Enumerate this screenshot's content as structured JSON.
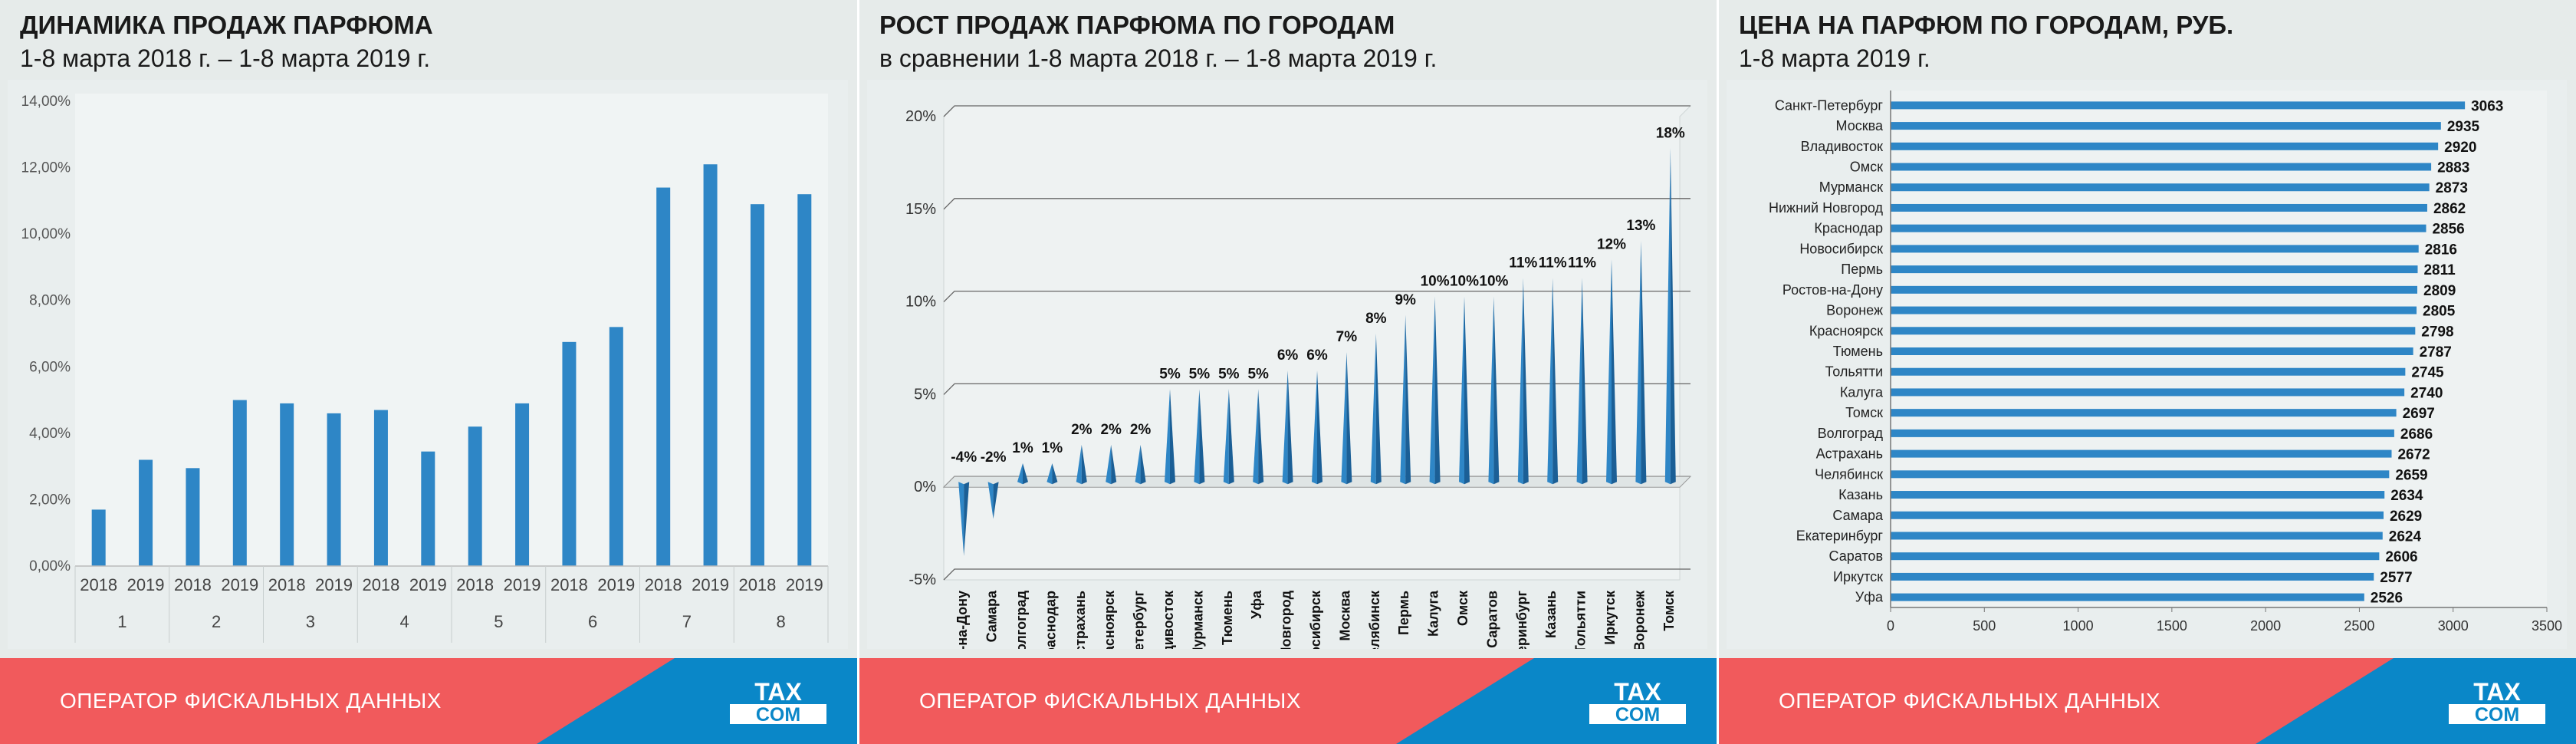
{
  "panels": [
    {
      "title": "ДИНАМИКА ПРОДАЖ ПАРФЮМА",
      "subtitle": "1-8 марта 2018 г. – 1-8 марта 2019 г."
    },
    {
      "title": "РОСТ ПРОДАЖ ПАРФЮМА ПО ГОРОДАМ",
      "subtitle": "в сравнении 1-8 марта 2018 г. – 1-8 марта 2019 г."
    },
    {
      "title": "ЦЕНА НА ПАРФЮМ ПО ГОРОДАМ, РУБ.",
      "subtitle": "1-8 марта 2019 г."
    }
  ],
  "footer": {
    "text": "ОПЕРАТОР ФИСКАЛЬНЫХ ДАННЫХ",
    "logo_line1": "TAX",
    "logo_line2": "COM"
  },
  "colors": {
    "bar": "#2e86c6",
    "bar_dark": "#1b5f96",
    "footer_red": "#f15a5c",
    "footer_blue": "#0a87c8",
    "background": "#e6ebea"
  },
  "chart_data": [
    {
      "type": "bar",
      "title": "ДИНАМИКА ПРОДАЖ ПАРФЮМА",
      "subtitle": "1-8 марта 2018 г. – 1-8 марта 2019 г.",
      "groups": [
        "1",
        "2",
        "3",
        "4",
        "5",
        "6",
        "7",
        "8"
      ],
      "categories": [
        "2018",
        "2019",
        "2018",
        "2019",
        "2018",
        "2019",
        "2018",
        "2019",
        "2018",
        "2019",
        "2018",
        "2019",
        "2018",
        "2019",
        "2018",
        "2019"
      ],
      "values": [
        1.7,
        3.2,
        2.95,
        5.0,
        4.9,
        4.6,
        4.7,
        3.45,
        4.2,
        4.9,
        6.75,
        7.2,
        11.4,
        12.1,
        10.9,
        11.2
      ],
      "ylim": [
        0,
        14
      ],
      "yticks": [
        "0,00%",
        "2,00%",
        "4,00%",
        "6,00%",
        "8,00%",
        "10,00%",
        "12,00%",
        "14,00%"
      ],
      "grid": false
    },
    {
      "type": "bar",
      "title": "РОСТ ПРОДАЖ ПАРФЮМА ПО ГОРОДАМ",
      "subtitle": "в сравнении 1-8 марта 2018 г. – 1-8 марта 2019 г.",
      "categories": [
        "Ростов-на-Дону",
        "Самара",
        "Волгоград",
        "Краснодар",
        "Астрахань",
        "Красноярск",
        "Санкт-Петербург",
        "Владивосток",
        "Мурманск",
        "Тюмень",
        "Уфа",
        "Нижний Новгород",
        "Новосибирск",
        "Москва",
        "Челябинск",
        "Пермь",
        "Калуга",
        "Омск",
        "Саратов",
        "Екатеринбург",
        "Казань",
        "Тольятти",
        "Иркутск",
        "Воронеж",
        "Томск"
      ],
      "values": [
        -4,
        -2,
        1,
        1,
        2,
        2,
        2,
        5,
        5,
        5,
        5,
        6,
        6,
        7,
        8,
        9,
        10,
        10,
        10,
        11,
        11,
        11,
        12,
        13,
        18
      ],
      "labels": [
        "-4%",
        "-2%",
        "1%",
        "1%",
        "2%",
        "2%",
        "2%",
        "5%",
        "5%",
        "5%",
        "5%",
        "6%",
        "6%",
        "7%",
        "8%",
        "9%",
        "10%",
        "10%",
        "10%",
        "11%",
        "11%",
        "11%",
        "12%",
        "13%",
        "18%"
      ],
      "ylim": [
        -5,
        20
      ],
      "yticks": [
        "-5%",
        "0%",
        "5%",
        "10%",
        "15%",
        "20%"
      ],
      "grid": true
    },
    {
      "type": "bar",
      "orientation": "horizontal",
      "title": "ЦЕНА НА ПАРФЮМ ПО ГОРОДАМ, РУБ.",
      "subtitle": "1-8 марта 2019 г.",
      "categories": [
        "Санкт-Петербург",
        "Москва",
        "Владивосток",
        "Омск",
        "Мурманск",
        "Нижний Новгород",
        "Краснодар",
        "Новосибирск",
        "Пермь",
        "Ростов-на-Дону",
        "Воронеж",
        "Красноярск",
        "Тюмень",
        "Тольятти",
        "Калуга",
        "Томск",
        "Волгоград",
        "Астрахань",
        "Челябинск",
        "Казань",
        "Самара",
        "Екатеринбург",
        "Саратов",
        "Иркутск",
        "Уфа"
      ],
      "values": [
        3063,
        2935,
        2920,
        2883,
        2873,
        2862,
        2856,
        2816,
        2811,
        2809,
        2805,
        2798,
        2787,
        2745,
        2740,
        2697,
        2686,
        2672,
        2659,
        2634,
        2629,
        2624,
        2606,
        2577,
        2526
      ],
      "labels": [
        "3063",
        "2935",
        "2920",
        "2883",
        "2873",
        "2862",
        "2856",
        "2816",
        "2811",
        "2809",
        "2805",
        "2798",
        "2787",
        "2745",
        "2740",
        "2697",
        "2686",
        "2672",
        "2659",
        "2634",
        "2629",
        "2624",
        "2606",
        "2577",
        "2526"
      ],
      "xlim": [
        0,
        3500
      ],
      "xticks": [
        "0",
        "500",
        "1000",
        "1500",
        "2000",
        "2500",
        "3000",
        "3500"
      ],
      "grid": false
    }
  ]
}
